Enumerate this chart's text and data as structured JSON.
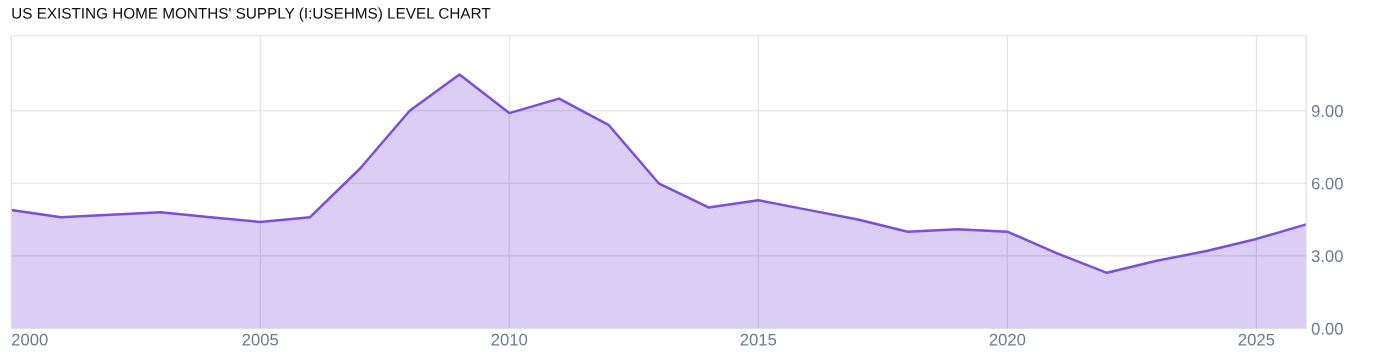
{
  "chart_data": {
    "type": "area",
    "title": "US EXISTING HOME MONTHS' SUPPLY (I:USEHMS) LEVEL CHART",
    "x": [
      2000,
      2001,
      2002,
      2003,
      2004,
      2005,
      2006,
      2007,
      2008,
      2009,
      2010,
      2011,
      2012,
      2013,
      2014,
      2015,
      2016,
      2017,
      2018,
      2019,
      2020,
      2021,
      2022,
      2023,
      2024,
      2025,
      2026
    ],
    "series": [
      {
        "color": "#7b4fd6",
        "values": [
          4.9,
          4.6,
          4.7,
          4.8,
          4.6,
          4.4,
          4.6,
          6.6,
          9.0,
          10.5,
          8.9,
          9.5,
          8.4,
          6.0,
          5.0,
          5.3,
          4.9,
          4.5,
          4.0,
          4.1,
          4.0,
          3.1,
          2.3,
          2.8,
          3.2,
          3.7,
          4.3
        ]
      }
    ],
    "xlim": [
      2000,
      2026
    ],
    "xticks": [
      2000,
      2005,
      2010,
      2015,
      2020,
      2025
    ],
    "ylim": [
      0,
      12.1
    ],
    "yticks": [
      {
        "value": 0,
        "label": "0.00"
      },
      {
        "value": 3,
        "label": "3.00"
      },
      {
        "value": 6,
        "label": "6.00"
      },
      {
        "value": 9,
        "label": "9.00"
      }
    ],
    "grid": true,
    "legend": false
  }
}
